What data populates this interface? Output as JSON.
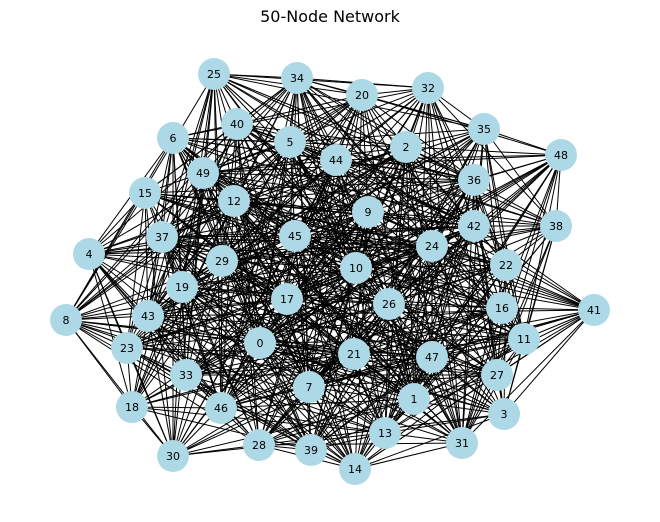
{
  "title": "50-Node Network",
  "style": {
    "node_color": "#add8e6",
    "edge_color": "#000000",
    "background": "#ffffff"
  },
  "graph": {
    "layout": "spring",
    "edge_density": "near-complete",
    "nodes": [
      "25",
      "34",
      "20",
      "32",
      "6",
      "40",
      "5",
      "44",
      "2",
      "35",
      "48",
      "49",
      "36",
      "15",
      "12",
      "9",
      "42",
      "38",
      "37",
      "45",
      "24",
      "4",
      "29",
      "10",
      "22",
      "19",
      "17",
      "26",
      "16",
      "41",
      "8",
      "43",
      "11",
      "23",
      "0",
      "21",
      "47",
      "27",
      "33",
      "7",
      "1",
      "18",
      "46",
      "3",
      "13",
      "28",
      "39",
      "31",
      "30",
      "14"
    ]
  }
}
